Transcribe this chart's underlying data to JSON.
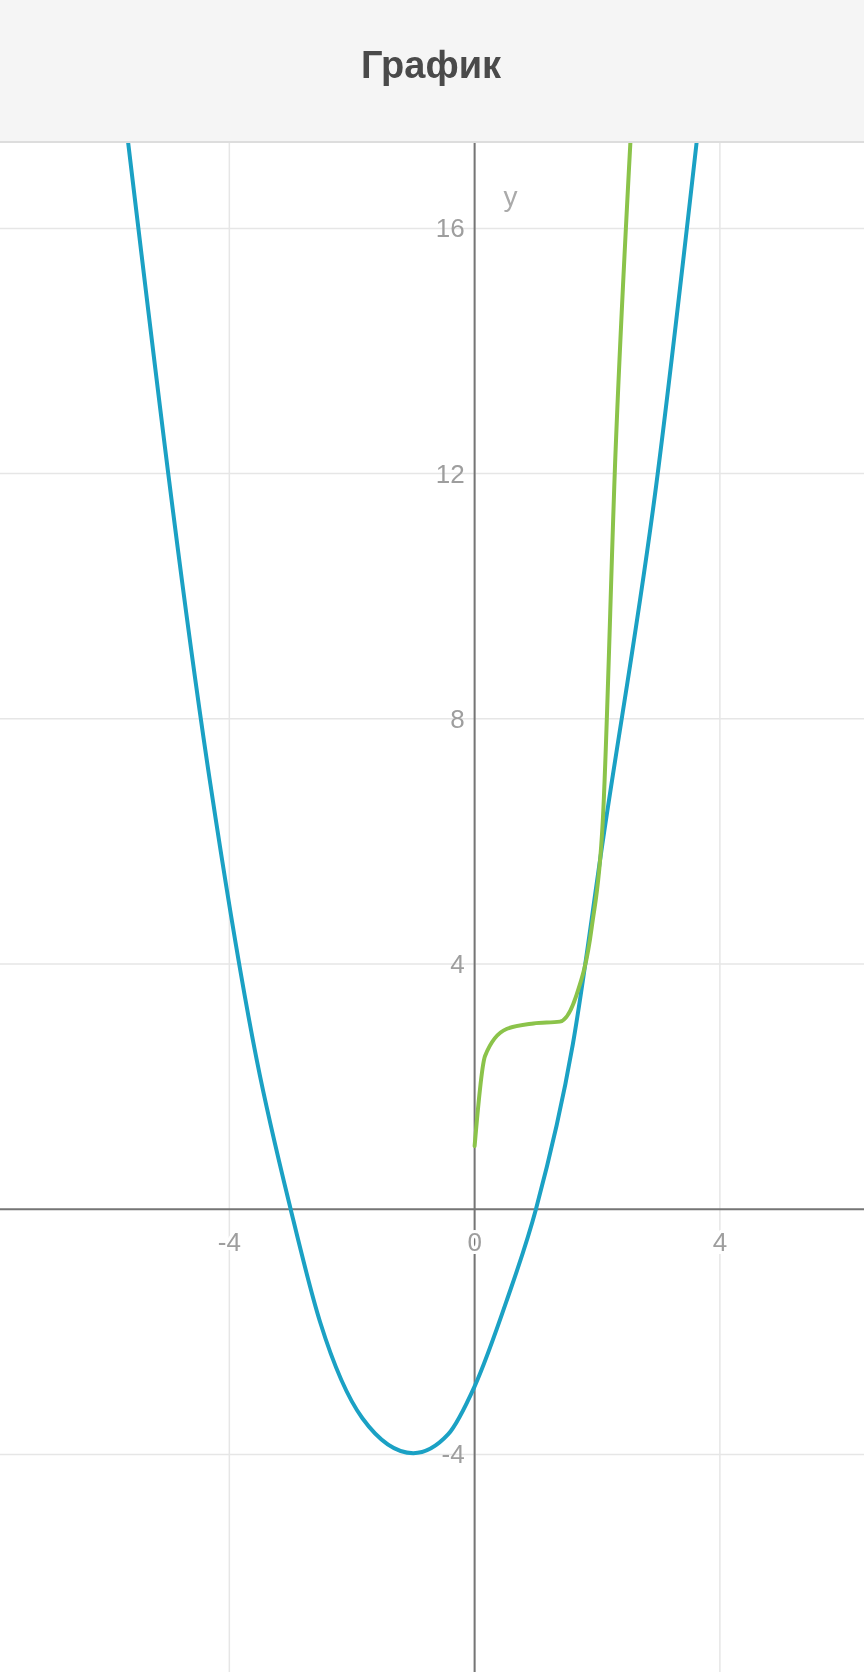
{
  "chart_data": {
    "type": "line",
    "title": "График",
    "ylabel": "y",
    "xlim": [
      -7.74,
      6.35
    ],
    "ylim": [
      -7.55,
      17.41
    ],
    "xticks": [
      -4,
      0,
      4
    ],
    "yticks": [
      -4,
      4,
      8,
      12,
      16
    ],
    "grid": true,
    "marker": "none",
    "line_style": "solid",
    "series": [
      {
        "color": "#1ba1c4",
        "x": [
          -5.65,
          -4.31,
          -3.55,
          -3.0,
          -2.52,
          -1.83,
          -1.0,
          -0.43,
          0,
          0.52,
          1,
          1.6,
          2.1,
          2.96,
          3.62
        ],
        "values": [
          17.4,
          6.94,
          2.42,
          0,
          -1.84,
          -3.41,
          -3.98,
          -3.67,
          -2.89,
          -1.5,
          0,
          2.68,
          6.07,
          11.8,
          17.4
        ]
      },
      {
        "color": "#8bc34a",
        "x": [
          0,
          0.17,
          0.52,
          0.96,
          1.39,
          1.65,
          1.91,
          2.09,
          2.3,
          2.54
        ],
        "values": [
          1.03,
          2.5,
          2.94,
          3.03,
          3.06,
          3.46,
          4.6,
          6.33,
          12.4,
          17.4
        ]
      }
    ]
  }
}
